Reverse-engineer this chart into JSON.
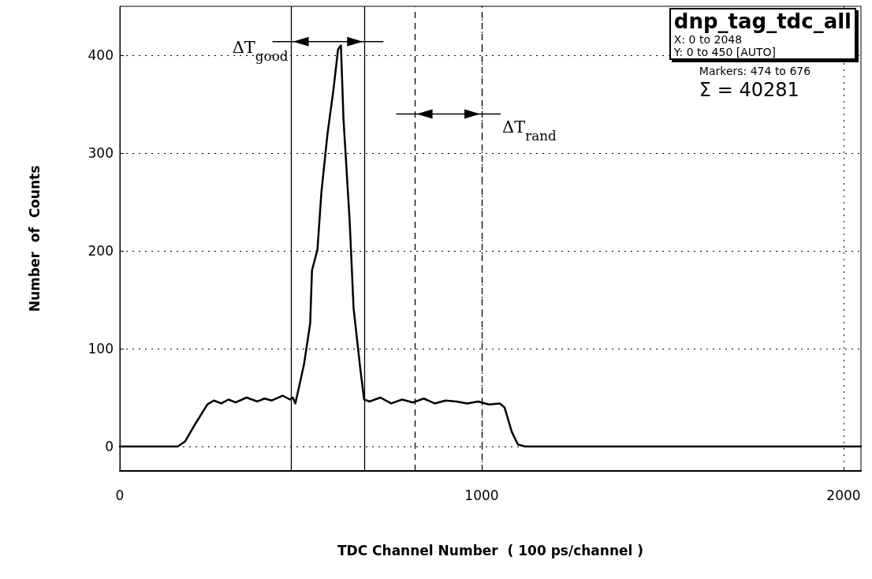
{
  "chart_data": {
    "type": "line",
    "xlabel": "TDC Channel Number  ( 100 ps/channel )",
    "ylabel": "Number  of  Counts",
    "x": [
      0,
      160,
      180,
      210,
      242,
      260,
      280,
      300,
      320,
      350,
      380,
      400,
      420,
      450,
      470,
      478,
      485,
      509,
      526,
      531,
      546,
      557,
      574,
      590,
      603,
      611,
      618,
      635,
      646,
      664,
      675,
      690,
      720,
      750,
      780,
      810,
      840,
      870,
      900,
      930,
      960,
      990,
      1020,
      1050,
      1063,
      1083,
      1100,
      1120,
      2048
    ],
    "series": [
      {
        "color": "#000000",
        "values": [
          0,
          0,
          5,
          24,
          43,
          47,
          44,
          48,
          45,
          50,
          46,
          49,
          47,
          52,
          48,
          50,
          44,
          84,
          126,
          180,
          201,
          260,
          320,
          364,
          406,
          410,
          335,
          231,
          141,
          81,
          48,
          46,
          50,
          44,
          48,
          45,
          49,
          44,
          47,
          46,
          44,
          46,
          43,
          44,
          40,
          15,
          2,
          0,
          0
        ]
      }
    ],
    "xlim": [
      0,
      2048
    ],
    "ylim": [
      -25,
      450
    ],
    "xticks": [
      0,
      1000,
      2000
    ],
    "yticks": [
      0,
      100,
      200,
      300,
      400
    ],
    "grid": true,
    "marker": "none",
    "line_style": "solid",
    "ref_lines": [
      {
        "axis": "x",
        "value": 474,
        "line_style": "solid",
        "color": "#000000"
      },
      {
        "axis": "x",
        "value": 676,
        "line_style": "solid",
        "color": "#000000"
      },
      {
        "axis": "x",
        "value": 816,
        "line_style": "dashed",
        "color": "#000000"
      },
      {
        "axis": "x",
        "value": 1000,
        "line_style": "dashed",
        "color": "#000000"
      }
    ],
    "annotations": [
      "dnp_tag_tdc_all",
      "X: 0 to 2048",
      "Y: 0 to 450 [AUTO]",
      "Markers: 474 to 676",
      "Σ = 40281",
      {
        "text": "ΔT$_{good}$",
        "x": 474,
        "y": 414
      },
      {
        "text": "ΔT$_{rand}$",
        "x": 1000,
        "y": 340
      }
    ]
  }
}
